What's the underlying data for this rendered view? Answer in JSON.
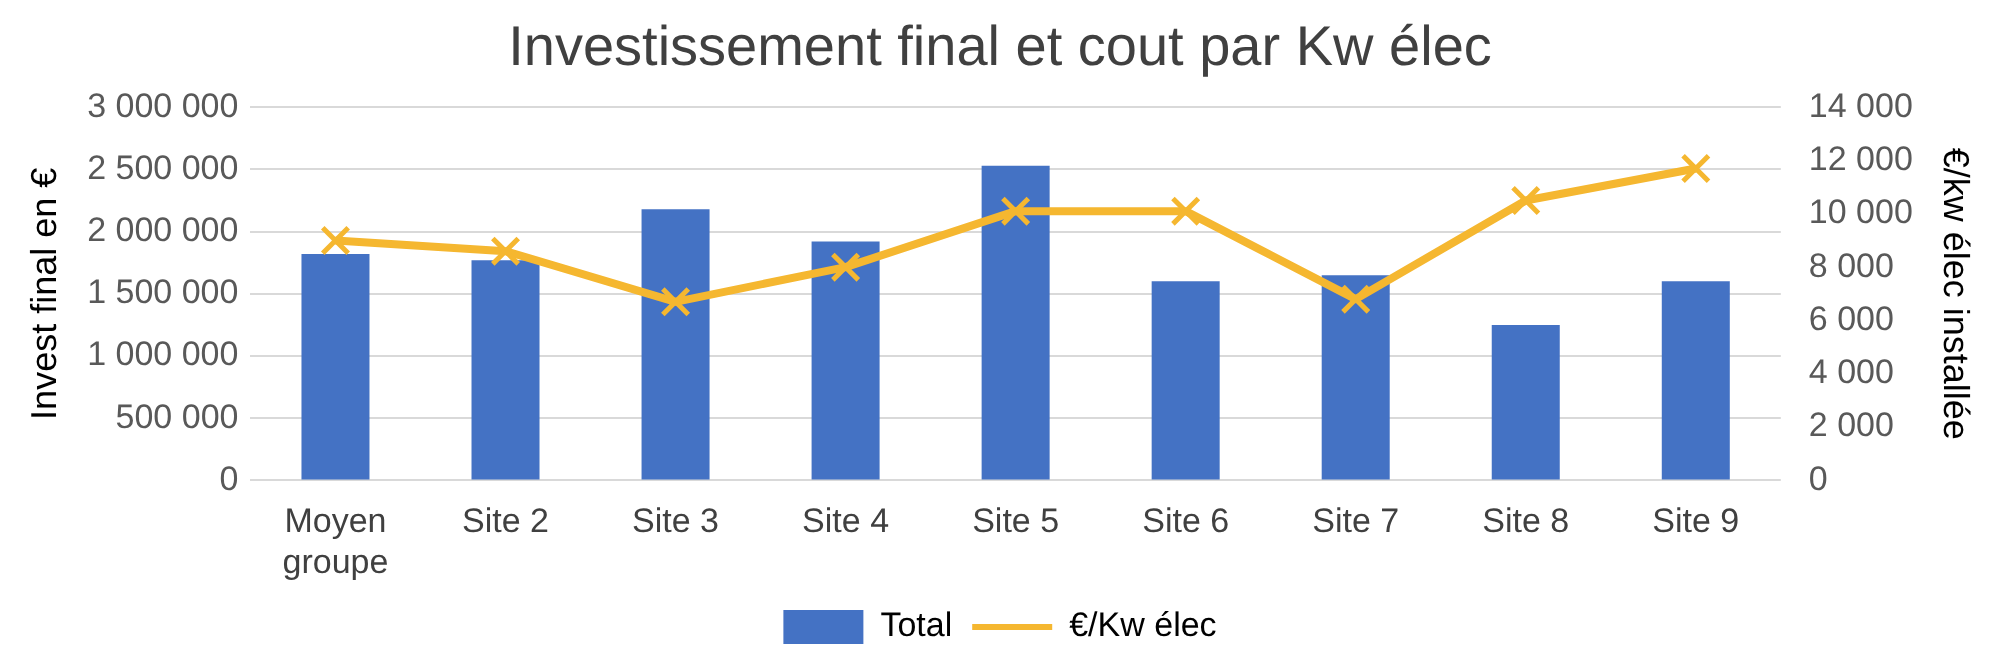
{
  "chart_data": {
    "type": "bar",
    "title": "Investissement final et cout par Kw élec",
    "ylabel": "Invest final en €",
    "y2label": "€/kw élec installée",
    "categories": [
      "Moyen groupe",
      "Site 2",
      "Site 3",
      "Site 4",
      "Site 5",
      "Site 6",
      "Site 7",
      "Site 8",
      "Site 9"
    ],
    "series": [
      {
        "name": "Total",
        "color": "#4472c4",
        "values": [
          1820000,
          1770000,
          2180000,
          1920000,
          2530000,
          1600000,
          1650000,
          1250000,
          1600000
        ]
      },
      {
        "name": "€/Kw élec",
        "type": "line",
        "axis": "y2",
        "color": "#f5b730",
        "marker": "cross",
        "values": [
          9000,
          8600,
          6700,
          8000,
          10100,
          10100,
          6800,
          10500,
          11700
        ]
      }
    ],
    "ylim": [
      0,
      3000000
    ],
    "yticks": [
      {
        "value": 0,
        "label": "0"
      },
      {
        "value": 500000,
        "label": "500 000"
      },
      {
        "value": 1000000,
        "label": "1 000 000"
      },
      {
        "value": 1500000,
        "label": "1 500 000"
      },
      {
        "value": 2000000,
        "label": "2 000 000"
      },
      {
        "value": 2500000,
        "label": "2 500 000"
      },
      {
        "value": 3000000,
        "label": "3 000 000"
      }
    ],
    "y2lim": [
      0,
      14000
    ],
    "y2ticks": [
      {
        "value": 0,
        "label": "0"
      },
      {
        "value": 2000,
        "label": "2 000"
      },
      {
        "value": 4000,
        "label": "4 000"
      },
      {
        "value": 6000,
        "label": "6 000"
      },
      {
        "value": 8000,
        "label": "8 000"
      },
      {
        "value": 10000,
        "label": "10 000"
      },
      {
        "value": 12000,
        "label": "12 000"
      },
      {
        "value": 14000,
        "label": "14 000"
      }
    ],
    "grid": "y",
    "legend": "bottom"
  }
}
